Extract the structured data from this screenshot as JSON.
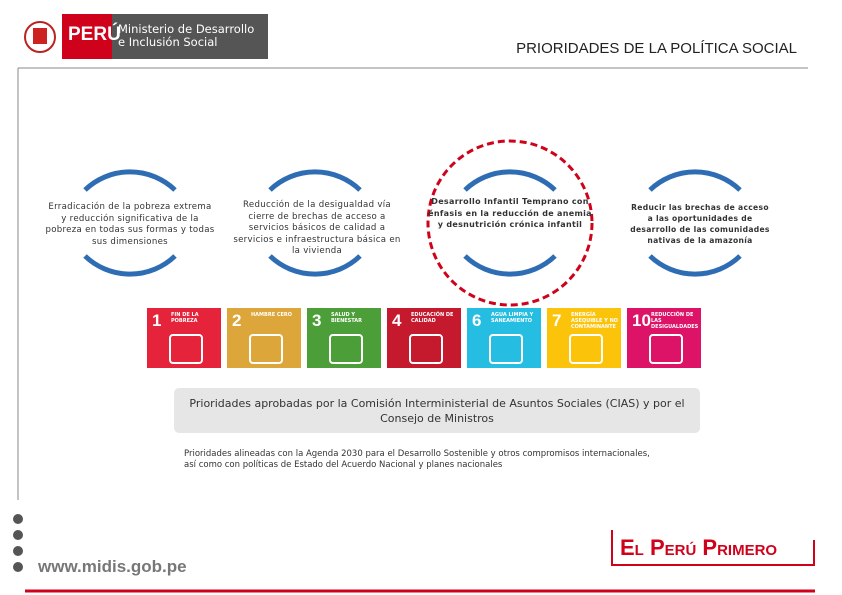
{
  "header": {
    "country": "PERÚ",
    "ministry": [
      "Ministerio de Desarrollo",
      "e Inclusión Social"
    ],
    "title": "PRIORIDADES DE LA POLÍTICA SOCIAL"
  },
  "priorities": [
    "Erradicación de la pobreza extrema y reducción significativa de la pobreza en todas sus formas y todas sus dimensiones",
    "Reducción de la desigualdad vía cierre de brechas de acceso a servicios básicos de calidad a servicios e infraestructura básica en la vivienda",
    "Desarrollo Infantil Temprano con énfasis en la reducción de anemia y desnutrición crónica infantil",
    "Reducir las brechas de acceso a las oportunidades de desarrollo de las comunidades nativas de la amazonía"
  ],
  "sdgs": [
    {
      "number": "1",
      "label": "FIN DE LA POBREZA",
      "color": "#e5243b"
    },
    {
      "number": "2",
      "label": "HAMBRE CERO",
      "color": "#dda63a"
    },
    {
      "number": "3",
      "label": "SALUD Y BIENESTAR",
      "color": "#4c9f38"
    },
    {
      "number": "4",
      "label": "EDUCACIÓN DE CALIDAD",
      "color": "#c5192d"
    },
    {
      "number": "6",
      "label": "AGUA LIMPIA Y SANEAMIENTO",
      "color": "#26bde2"
    },
    {
      "number": "7",
      "label": "ENERGÍA ASEQUIBLE Y NO CONTAMINANTE",
      "color": "#fcc30b"
    },
    {
      "number": "10",
      "label": "REDUCCIÓN DE LAS DESIGUALDADES",
      "color": "#dd1367"
    }
  ],
  "approval": "Prioridades aprobadas por la Comisión Interministerial de Asuntos Sociales (CIAS) y por el Consejo de Ministros",
  "note": "Prioridades alineadas con la Agenda 2030 para el Desarrollo Sostenible y otros compromisos internacionales, así como con políticas de Estado del Acuerdo Nacional y planes nacionales",
  "footer": {
    "website": "www.midis.gob.pe",
    "slogan": "El Perú Primero"
  }
}
